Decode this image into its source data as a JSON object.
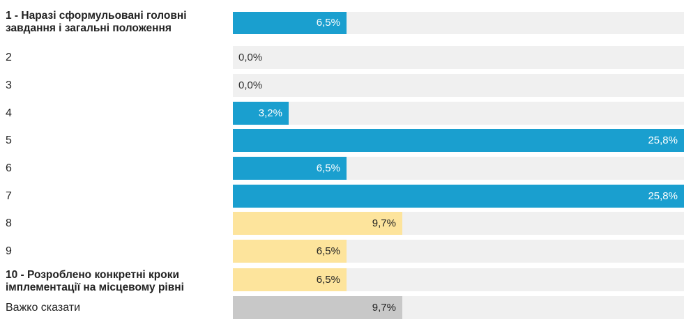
{
  "chart_data": {
    "type": "bar",
    "orientation": "horizontal",
    "xlim": [
      0,
      25.8
    ],
    "categories": [
      "1 - Наразі сформульовані головні завдання і загальні положення",
      "2",
      "3",
      "4",
      "5",
      "6",
      "7",
      "8",
      "9",
      "10 - Розроблено конкретні кроки імплементації на місцевому рівні",
      "Важко сказати"
    ],
    "values": [
      6.5,
      0.0,
      0.0,
      3.2,
      25.8,
      6.5,
      25.8,
      9.7,
      6.5,
      6.5,
      9.7
    ],
    "value_labels": [
      "6,5%",
      "0,0%",
      "0,0%",
      "3,2%",
      "25,8%",
      "6,5%",
      "25,8%",
      "9,7%",
      "6,5%",
      "6,5%",
      "9,7%"
    ],
    "bar_colors": [
      "#1a9fcf",
      "#1a9fcf",
      "#1a9fcf",
      "#1a9fcf",
      "#1a9fcf",
      "#1a9fcf",
      "#1a9fcf",
      "#fde49c",
      "#fde49c",
      "#fde49c",
      "#c8c8c8"
    ],
    "label_colors": [
      "#ffffff",
      "#333333",
      "#333333",
      "#ffffff",
      "#ffffff",
      "#ffffff",
      "#ffffff",
      "#222222",
      "#222222",
      "#222222",
      "#222222"
    ],
    "bold_labels": [
      true,
      false,
      false,
      false,
      false,
      false,
      false,
      false,
      false,
      true,
      false
    ],
    "track_color": "#f0f0f0",
    "grid": false,
    "legend": "none"
  }
}
